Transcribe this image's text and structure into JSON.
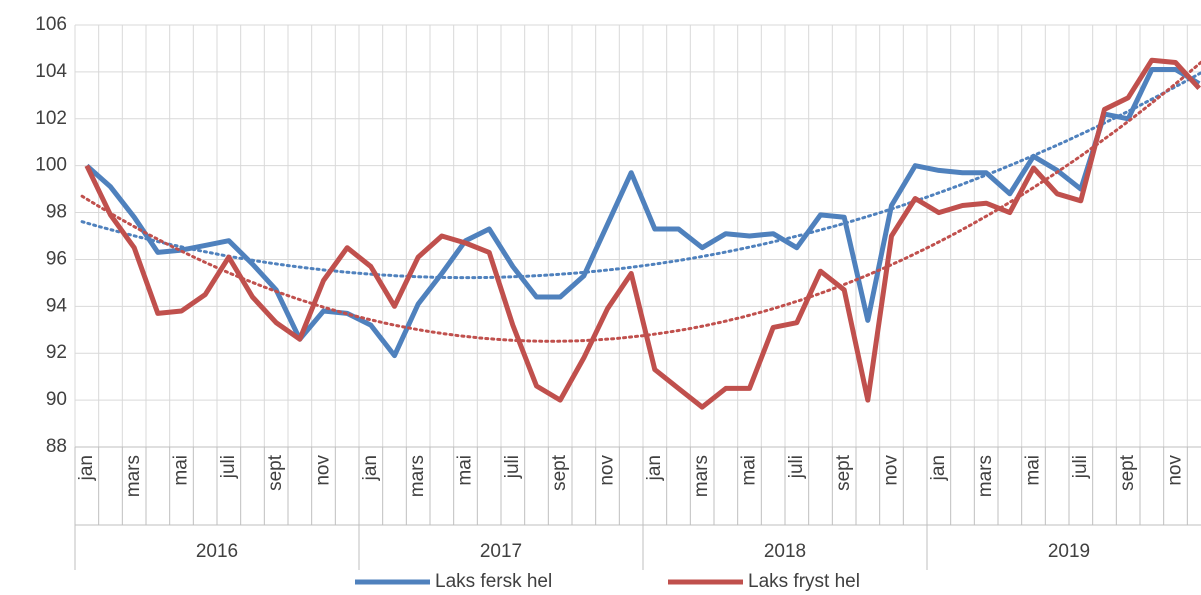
{
  "chart_data": {
    "type": "line",
    "categories": [
      "jan",
      null,
      "mars",
      null,
      "mai",
      null,
      "juli",
      null,
      "sept",
      null,
      "nov",
      null,
      "jan",
      null,
      "mars",
      null,
      "mai",
      null,
      "juli",
      null,
      "sept",
      null,
      "nov",
      null,
      "jan",
      null,
      "mars",
      null,
      "mai",
      null,
      "juli",
      null,
      "sept",
      null,
      "nov",
      null,
      "jan",
      null,
      "mars",
      null,
      "mai",
      null,
      "juli",
      null,
      "sept",
      null,
      "nov",
      null
    ],
    "years": [
      "2016",
      "2017",
      "2018",
      "2019"
    ],
    "series": [
      {
        "name": "Laks fersk hel",
        "color": "#4f81bd",
        "values": [
          100,
          99.1,
          97.8,
          96.3,
          96.4,
          96.6,
          96.8,
          95.8,
          94.7,
          92.6,
          93.8,
          93.7,
          93.2,
          91.9,
          94.1,
          95.4,
          96.8,
          97.3,
          95.7,
          94.4,
          94.4,
          95.3,
          97.5,
          99.7,
          97.3,
          97.3,
          96.5,
          97.1,
          97.0,
          97.1,
          96.5,
          97.9,
          97.8,
          93.4,
          98.3,
          100,
          99.8,
          99.7,
          99.7,
          98.8,
          100.4,
          99.8,
          99,
          102.2,
          102,
          104.1,
          104.1,
          103.5
        ]
      },
      {
        "name": "Laks fryst hel",
        "color": "#c0504d",
        "values": [
          100,
          97.9,
          96.5,
          93.7,
          93.8,
          94.5,
          96.1,
          94.4,
          93.3,
          92.6,
          95.1,
          96.5,
          95.7,
          94,
          96.1,
          97,
          96.7,
          96.3,
          93.2,
          90.6,
          90,
          91.8,
          93.9,
          95.4,
          91.3,
          90.5,
          89.7,
          90.5,
          90.5,
          93.1,
          93.3,
          95.5,
          94.7,
          90,
          97,
          98.6,
          98,
          98.3,
          98.4,
          98,
          99.9,
          98.8,
          98.5,
          102.4,
          102.9,
          104.5,
          104.4,
          103.3
        ]
      }
    ],
    "trendline": {
      "type": "polynomial",
      "order": 2
    },
    "ylim": [
      88,
      106
    ],
    "yticks": [
      88,
      90,
      92,
      94,
      96,
      98,
      100,
      102,
      104,
      106
    ],
    "grid": true,
    "legend": "bottom"
  }
}
